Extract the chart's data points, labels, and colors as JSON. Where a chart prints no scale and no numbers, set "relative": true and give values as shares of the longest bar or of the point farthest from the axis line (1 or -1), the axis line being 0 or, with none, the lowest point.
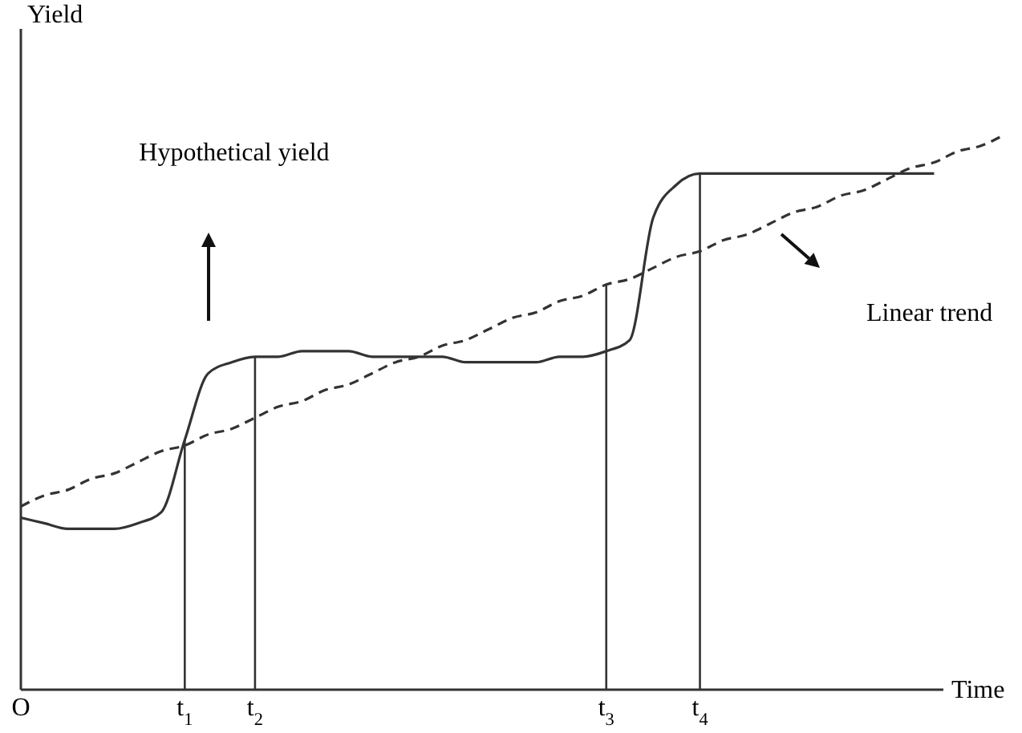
{
  "chart_data": {
    "type": "line",
    "relative": true,
    "xlabel": "Time",
    "ylabel": "Yield",
    "tick_labels": "x",
    "categories": [
      "O",
      null,
      null,
      null,
      null,
      null,
      null,
      "t$_{1}$",
      null,
      null,
      "t$_{2}$",
      null,
      null,
      null,
      null,
      null,
      null,
      null,
      null,
      null,
      null,
      null,
      null,
      null,
      null,
      "t$_{3}$",
      null,
      null,
      null,
      "t$_{4}$",
      null,
      null,
      null,
      null,
      null,
      null,
      null,
      null,
      null,
      null,
      null,
      null,
      null
    ],
    "series": [
      {
        "color": "#333333",
        "line_style": "solid",
        "values": [
          0.31,
          0.3,
          0.29,
          0.29,
          0.29,
          0.3,
          0.32,
          0.45,
          0.57,
          0.59,
          0.6,
          0.6,
          0.61,
          0.61,
          0.61,
          0.6,
          0.6,
          0.6,
          0.6,
          0.59,
          0.59,
          0.59,
          0.59,
          0.6,
          0.6,
          0.61,
          0.63,
          0.85,
          0.91,
          0.93,
          0.93,
          0.93,
          0.93,
          0.93,
          0.93,
          0.93,
          0.93,
          0.93,
          0.93,
          0.93,
          null,
          null,
          null
        ]
      },
      {
        "color": "#333333",
        "line_style": "dashed",
        "values": [
          0.33,
          0.35,
          0.36,
          0.38,
          0.39,
          0.41,
          0.43,
          0.44,
          0.46,
          0.47,
          0.49,
          0.51,
          0.52,
          0.54,
          0.55,
          0.57,
          0.59,
          0.6,
          0.62,
          0.63,
          0.65,
          0.67,
          0.68,
          0.7,
          0.71,
          0.73,
          0.74,
          0.76,
          0.78,
          0.79,
          0.81,
          0.82,
          0.84,
          0.86,
          0.87,
          0.89,
          0.9,
          0.92,
          0.94,
          0.95,
          0.97,
          0.98,
          1
        ]
      }
    ],
    "ref_lines": [
      {
        "axis": "x",
        "value": "t$_{1}$"
      },
      {
        "axis": "x",
        "value": "t$_{2}$"
      },
      {
        "axis": "x",
        "value": "t$_{3}$"
      },
      {
        "axis": "x",
        "value": "t$_{4}$"
      }
    ],
    "annotations": [
      "Hypothetical yield",
      "Linear trend"
    ]
  }
}
